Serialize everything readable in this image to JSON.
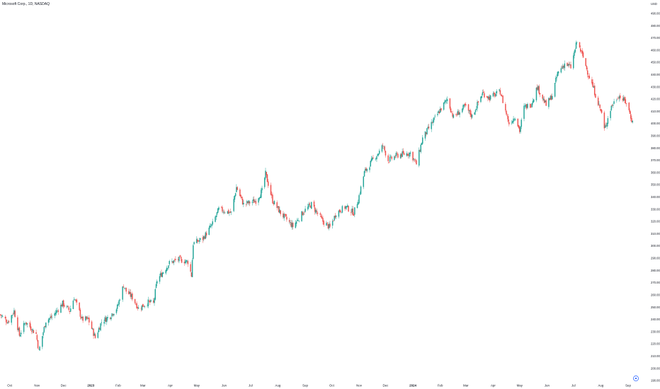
{
  "header": {
    "title": "Microsoft Corp., 1D, NASDAQ",
    "currency": "USD"
  },
  "colors": {
    "up": "#26a69a",
    "down": "#ef5350",
    "background": "#ffffff",
    "text": "#131722",
    "axis_button": "#2962ff"
  },
  "icons": {
    "axis_settings": "settings-circle-icon"
  },
  "chart_data": {
    "type": "candlestick",
    "title": "Microsoft Corp., 1D, NASDAQ",
    "ylabel": "USD",
    "ylim": [
      190,
      500
    ],
    "y_ticks": [
      {
        "value": 490,
        "label": "490.00"
      },
      {
        "value": 480,
        "label": "480.00"
      },
      {
        "value": 470,
        "label": "470.00"
      },
      {
        "value": 460,
        "label": "460.00"
      },
      {
        "value": 450,
        "label": "450.00"
      },
      {
        "value": 440,
        "label": "440.00"
      },
      {
        "value": 430,
        "label": "430.00"
      },
      {
        "value": 420,
        "label": "420.00"
      },
      {
        "value": 410,
        "label": "410.00"
      },
      {
        "value": 400,
        "label": "400.00"
      },
      {
        "value": 390,
        "label": "390.00"
      },
      {
        "value": 380,
        "label": "380.00"
      },
      {
        "value": 370,
        "label": "370.00"
      },
      {
        "value": 360,
        "label": "360.00"
      },
      {
        "value": 350,
        "label": "350.00"
      },
      {
        "value": 340,
        "label": "340.00"
      },
      {
        "value": 330,
        "label": "330.00"
      },
      {
        "value": 320,
        "label": "320.00"
      },
      {
        "value": 310,
        "label": "310.00"
      },
      {
        "value": 300,
        "label": "300.00"
      },
      {
        "value": 290,
        "label": "290.00"
      },
      {
        "value": 280,
        "label": "280.00"
      },
      {
        "value": 270,
        "label": "270.00"
      },
      {
        "value": 260,
        "label": "260.00"
      },
      {
        "value": 250,
        "label": "250.00"
      },
      {
        "value": 240,
        "label": "240.00"
      },
      {
        "value": 230,
        "label": "230.00"
      },
      {
        "value": 220,
        "label": "220.00"
      },
      {
        "value": 210,
        "label": "210.00"
      },
      {
        "value": 200,
        "label": "200.00"
      },
      {
        "value": 190,
        "label": "190.00"
      }
    ],
    "x_ticks": [
      {
        "date": "2022-10-01",
        "label": "Oct",
        "bold": false
      },
      {
        "date": "2022-11-01",
        "label": "Nov",
        "bold": false
      },
      {
        "date": "2022-12-01",
        "label": "Dec",
        "bold": false
      },
      {
        "date": "2023-01-01",
        "label": "2023",
        "bold": true
      },
      {
        "date": "2023-02-01",
        "label": "Feb",
        "bold": false
      },
      {
        "date": "2023-03-01",
        "label": "Mar",
        "bold": false
      },
      {
        "date": "2023-04-01",
        "label": "Apr",
        "bold": false
      },
      {
        "date": "2023-05-01",
        "label": "May",
        "bold": false
      },
      {
        "date": "2023-06-01",
        "label": "Jun",
        "bold": false
      },
      {
        "date": "2023-07-01",
        "label": "Jul",
        "bold": false
      },
      {
        "date": "2023-08-01",
        "label": "Aug",
        "bold": false
      },
      {
        "date": "2023-09-01",
        "label": "Sep",
        "bold": false
      },
      {
        "date": "2023-10-01",
        "label": "Oct",
        "bold": false
      },
      {
        "date": "2023-11-01",
        "label": "Nov",
        "bold": false
      },
      {
        "date": "2023-12-01",
        "label": "Dec",
        "bold": false
      },
      {
        "date": "2024-01-01",
        "label": "2024",
        "bold": true
      },
      {
        "date": "2024-02-01",
        "label": "Feb",
        "bold": false
      },
      {
        "date": "2024-03-01",
        "label": "Mar",
        "bold": false
      },
      {
        "date": "2024-04-01",
        "label": "Apr",
        "bold": false
      },
      {
        "date": "2024-05-01",
        "label": "May",
        "bold": false
      },
      {
        "date": "2024-06-01",
        "label": "Jun",
        "bold": false
      },
      {
        "date": "2024-07-01",
        "label": "Jul",
        "bold": false
      },
      {
        "date": "2024-08-01",
        "label": "Aug",
        "bold": false
      },
      {
        "date": "2024-09-01",
        "label": "Sep",
        "bold": false
      }
    ],
    "x_range": [
      "2022-09-20",
      "2024-09-09"
    ],
    "grid": false,
    "legend": "none",
    "close_path": [
      {
        "date": "2022-09-20",
        "close": 244
      },
      {
        "date": "2022-09-29",
        "close": 238
      },
      {
        "date": "2022-10-06",
        "close": 247
      },
      {
        "date": "2022-10-12",
        "close": 227
      },
      {
        "date": "2022-10-19",
        "close": 238
      },
      {
        "date": "2022-10-25",
        "close": 233
      },
      {
        "date": "2022-10-31",
        "close": 228
      },
      {
        "date": "2022-11-03",
        "close": 214
      },
      {
        "date": "2022-11-11",
        "close": 239
      },
      {
        "date": "2022-11-18",
        "close": 242
      },
      {
        "date": "2022-11-30",
        "close": 253
      },
      {
        "date": "2022-12-08",
        "close": 247
      },
      {
        "date": "2022-12-13",
        "close": 258
      },
      {
        "date": "2022-12-22",
        "close": 240
      },
      {
        "date": "2022-12-29",
        "close": 240
      },
      {
        "date": "2023-01-06",
        "close": 225
      },
      {
        "date": "2023-01-13",
        "close": 238
      },
      {
        "date": "2023-01-23",
        "close": 243
      },
      {
        "date": "2023-01-31",
        "close": 250
      },
      {
        "date": "2023-02-07",
        "close": 268
      },
      {
        "date": "2023-02-10",
        "close": 263
      },
      {
        "date": "2023-02-17",
        "close": 258
      },
      {
        "date": "2023-02-24",
        "close": 249
      },
      {
        "date": "2023-03-07",
        "close": 254
      },
      {
        "date": "2023-03-13",
        "close": 253
      },
      {
        "date": "2023-03-17",
        "close": 272
      },
      {
        "date": "2023-03-24",
        "close": 279
      },
      {
        "date": "2023-03-31",
        "close": 286
      },
      {
        "date": "2023-04-10",
        "close": 289
      },
      {
        "date": "2023-04-21",
        "close": 287
      },
      {
        "date": "2023-04-25",
        "close": 276
      },
      {
        "date": "2023-04-27",
        "close": 302
      },
      {
        "date": "2023-05-08",
        "close": 306
      },
      {
        "date": "2023-05-19",
        "close": 318
      },
      {
        "date": "2023-05-26",
        "close": 330
      },
      {
        "date": "2023-06-09",
        "close": 327
      },
      {
        "date": "2023-06-15",
        "close": 348
      },
      {
        "date": "2023-06-23",
        "close": 334
      },
      {
        "date": "2023-07-07",
        "close": 337
      },
      {
        "date": "2023-07-14",
        "close": 345
      },
      {
        "date": "2023-07-18",
        "close": 359
      },
      {
        "date": "2023-07-26",
        "close": 337
      },
      {
        "date": "2023-08-04",
        "close": 327
      },
      {
        "date": "2023-08-18",
        "close": 316
      },
      {
        "date": "2023-08-30",
        "close": 328
      },
      {
        "date": "2023-09-08",
        "close": 334
      },
      {
        "date": "2023-09-21",
        "close": 320
      },
      {
        "date": "2023-09-29",
        "close": 315
      },
      {
        "date": "2023-10-06",
        "close": 327
      },
      {
        "date": "2023-10-17",
        "close": 332
      },
      {
        "date": "2023-10-26",
        "close": 327
      },
      {
        "date": "2023-10-31",
        "close": 338
      },
      {
        "date": "2023-11-07",
        "close": 360
      },
      {
        "date": "2023-11-16",
        "close": 370
      },
      {
        "date": "2023-11-24",
        "close": 377
      },
      {
        "date": "2023-11-28",
        "close": 382
      },
      {
        "date": "2023-12-04",
        "close": 370
      },
      {
        "date": "2023-12-14",
        "close": 374
      },
      {
        "date": "2023-12-29",
        "close": 376
      },
      {
        "date": "2024-01-05",
        "close": 367
      },
      {
        "date": "2024-01-12",
        "close": 388
      },
      {
        "date": "2024-01-24",
        "close": 402
      },
      {
        "date": "2024-01-30",
        "close": 409
      },
      {
        "date": "2024-02-09",
        "close": 420
      },
      {
        "date": "2024-02-16",
        "close": 405
      },
      {
        "date": "2024-02-29",
        "close": 414
      },
      {
        "date": "2024-03-08",
        "close": 406
      },
      {
        "date": "2024-03-20",
        "close": 425
      },
      {
        "date": "2024-03-28",
        "close": 421
      },
      {
        "date": "2024-04-09",
        "close": 426
      },
      {
        "date": "2024-04-19",
        "close": 400
      },
      {
        "date": "2024-04-26",
        "close": 406
      },
      {
        "date": "2024-05-01",
        "close": 394
      },
      {
        "date": "2024-05-06",
        "close": 413
      },
      {
        "date": "2024-05-14",
        "close": 416
      },
      {
        "date": "2024-05-21",
        "close": 430
      },
      {
        "date": "2024-05-31",
        "close": 415
      },
      {
        "date": "2024-06-07",
        "close": 423
      },
      {
        "date": "2024-06-13",
        "close": 441
      },
      {
        "date": "2024-06-21",
        "close": 449
      },
      {
        "date": "2024-06-28",
        "close": 446
      },
      {
        "date": "2024-07-05",
        "close": 467
      },
      {
        "date": "2024-07-12",
        "close": 454
      },
      {
        "date": "2024-07-18",
        "close": 440
      },
      {
        "date": "2024-07-24",
        "close": 428
      },
      {
        "date": "2024-08-02",
        "close": 408
      },
      {
        "date": "2024-08-05",
        "close": 395
      },
      {
        "date": "2024-08-13",
        "close": 414
      },
      {
        "date": "2024-08-21",
        "close": 423
      },
      {
        "date": "2024-08-30",
        "close": 417
      },
      {
        "date": "2024-09-06",
        "close": 401
      }
    ]
  }
}
